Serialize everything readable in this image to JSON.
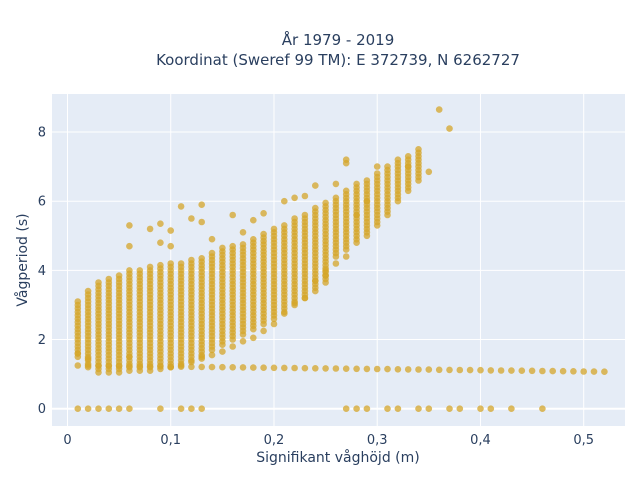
{
  "chart_data": {
    "type": "scatter",
    "title_lines": [
      "År 1979 - 2019",
      "Koordinat (Sweref 99 TM): E 372739, N 6262727"
    ],
    "xlabel": "Signifikant våghöjd (m)",
    "ylabel": "Vågperiod (s)",
    "xlim": [
      -0.015,
      0.54
    ],
    "ylim": [
      -0.5,
      9.1
    ],
    "x_ticks": [
      0,
      0.1,
      0.2,
      0.3,
      0.4,
      0.5
    ],
    "x_tick_labels": [
      "0",
      "0,1",
      "0,2",
      "0,3",
      "0,4",
      "0,5"
    ],
    "y_ticks": [
      0,
      2,
      4,
      6,
      8
    ],
    "y_tick_labels": [
      "0",
      "2",
      "4",
      "6",
      "8"
    ],
    "grid": true,
    "colors": {
      "marker": "#d4a52a",
      "plot_bg": "#e5ecf6",
      "grid": "#ffffff",
      "text": "#2a3f5f"
    },
    "zero_period_x": [
      0.01,
      0.02,
      0.03,
      0.04,
      0.05,
      0.06,
      0.09,
      0.11,
      0.12,
      0.13,
      0.27,
      0.28,
      0.29,
      0.31,
      0.32,
      0.34,
      0.35,
      0.37,
      0.38,
      0.4,
      0.41,
      0.43,
      0.46
    ],
    "low_band": {
      "x_start": 0.01,
      "x_end": 0.52,
      "step": 0.01,
      "y_start": 1.25,
      "y_end": 1.07
    },
    "main_band_columns": [
      [
        0.01,
        1.5,
        3.1
      ],
      [
        0.02,
        1.2,
        3.4
      ],
      [
        0.03,
        1.05,
        3.7
      ],
      [
        0.04,
        1.05,
        3.8
      ],
      [
        0.05,
        1.05,
        3.9
      ],
      [
        0.06,
        1.1,
        4.0
      ],
      [
        0.07,
        1.1,
        4.05
      ],
      [
        0.08,
        1.1,
        4.1
      ],
      [
        0.09,
        1.15,
        4.15
      ],
      [
        0.1,
        1.2,
        4.2
      ],
      [
        0.11,
        1.3,
        4.25
      ],
      [
        0.12,
        1.4,
        4.3
      ],
      [
        0.13,
        1.55,
        4.4
      ],
      [
        0.14,
        1.7,
        4.5
      ],
      [
        0.15,
        1.85,
        4.6
      ],
      [
        0.16,
        2.0,
        4.7
      ],
      [
        0.17,
        2.15,
        4.8
      ],
      [
        0.18,
        2.3,
        4.9
      ],
      [
        0.19,
        2.45,
        5.05
      ],
      [
        0.2,
        2.6,
        5.2
      ],
      [
        0.21,
        2.8,
        5.35
      ],
      [
        0.22,
        3.0,
        5.5
      ],
      [
        0.23,
        3.2,
        5.65
      ],
      [
        0.24,
        3.4,
        5.8
      ],
      [
        0.25,
        3.65,
        5.95
      ],
      [
        0.26,
        4.4,
        6.1
      ],
      [
        0.27,
        4.6,
        6.3
      ],
      [
        0.28,
        4.8,
        6.5
      ],
      [
        0.29,
        5.0,
        6.65
      ],
      [
        0.3,
        5.3,
        6.8
      ],
      [
        0.31,
        5.6,
        7.0
      ],
      [
        0.32,
        6.0,
        7.2
      ],
      [
        0.33,
        6.3,
        7.35
      ],
      [
        0.34,
        6.6,
        7.45
      ]
    ],
    "outliers": [
      [
        0.06,
        5.3
      ],
      [
        0.06,
        4.7
      ],
      [
        0.08,
        5.2
      ],
      [
        0.09,
        5.35
      ],
      [
        0.09,
        4.8
      ],
      [
        0.1,
        5.15
      ],
      [
        0.1,
        4.7
      ],
      [
        0.11,
        5.85
      ],
      [
        0.13,
        5.9
      ],
      [
        0.12,
        5.5
      ],
      [
        0.13,
        5.4
      ],
      [
        0.14,
        4.9
      ],
      [
        0.15,
        4.65
      ],
      [
        0.16,
        5.6
      ],
      [
        0.17,
        5.1
      ],
      [
        0.18,
        5.45
      ],
      [
        0.19,
        5.65
      ],
      [
        0.21,
        6.0
      ],
      [
        0.22,
        6.1
      ],
      [
        0.23,
        6.15
      ],
      [
        0.24,
        6.45
      ],
      [
        0.26,
        6.5
      ],
      [
        0.27,
        7.1
      ],
      [
        0.27,
        7.2
      ],
      [
        0.3,
        7.0
      ],
      [
        0.33,
        7.0
      ],
      [
        0.34,
        7.5
      ],
      [
        0.35,
        6.85
      ],
      [
        0.36,
        8.65
      ],
      [
        0.37,
        8.1
      ],
      [
        0.27,
        4.4
      ],
      [
        0.25,
        3.85
      ],
      [
        0.23,
        3.2
      ],
      [
        0.22,
        3.05
      ],
      [
        0.21,
        2.75
      ],
      [
        0.2,
        2.45
      ],
      [
        0.19,
        2.25
      ],
      [
        0.18,
        2.05
      ],
      [
        0.17,
        1.95
      ],
      [
        0.16,
        1.8
      ],
      [
        0.15,
        1.65
      ],
      [
        0.14,
        1.55
      ],
      [
        0.13,
        1.45
      ],
      [
        0.12,
        1.35
      ],
      [
        0.13,
        1.5
      ],
      [
        0.11,
        1.25
      ],
      [
        0.1,
        1.2
      ],
      [
        0.29,
        6.0
      ],
      [
        0.28,
        5.6
      ],
      [
        0.24,
        3.7
      ],
      [
        0.25,
        4.0
      ],
      [
        0.26,
        4.2
      ],
      [
        0.06,
        1.5
      ],
      [
        0.02,
        1.45
      ],
      [
        0.01,
        1.6
      ]
    ]
  }
}
